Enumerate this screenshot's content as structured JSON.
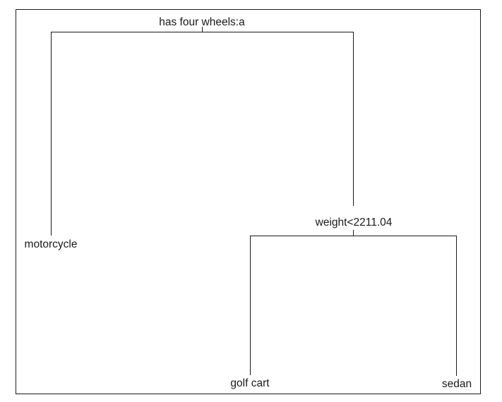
{
  "tree": {
    "root": {
      "split": "has four wheels:a",
      "left": {
        "leaf": "motorcycle"
      },
      "right": {
        "split": "weight<2211.04",
        "left": {
          "leaf": "golf cart"
        },
        "right": {
          "leaf": "sedan"
        }
      }
    }
  },
  "colors": {
    "line": "#1a1a1a",
    "text": "#1a1a1a",
    "background": "#ffffff"
  }
}
